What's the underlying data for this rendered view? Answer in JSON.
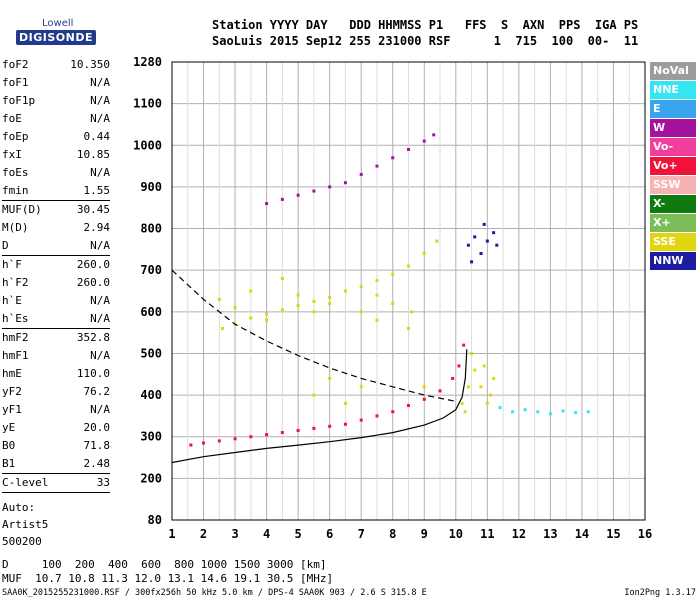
{
  "logo": {
    "sub": "Lowell",
    "main": "DIGISONDE"
  },
  "header": {
    "line1": "Station YYYY DAY   DDD HHMMSS P1   FFS  S  AXN  PPS  IGA PS",
    "line2": "SaoLuis 2015 Sep12 255 231000 RSF      1  715  100  00-  11"
  },
  "params": [
    [
      {
        "l": "foF2",
        "v": "10.350"
      },
      {
        "l": "foF1",
        "v": "N/A"
      },
      {
        "l": "foF1p",
        "v": "N/A"
      },
      {
        "l": "foE",
        "v": "N/A"
      },
      {
        "l": "foEp",
        "v": "0.44"
      },
      {
        "l": "fxI",
        "v": "10.85"
      },
      {
        "l": "foEs",
        "v": "N/A"
      },
      {
        "l": "fmin",
        "v": "1.55"
      }
    ],
    [
      {
        "l": "MUF(D)",
        "v": "30.45"
      },
      {
        "l": "M(D)",
        "v": "2.94"
      },
      {
        "l": "D",
        "v": "N/A"
      }
    ],
    [
      {
        "l": "h`F",
        "v": "260.0"
      },
      {
        "l": "h`F2",
        "v": "260.0"
      },
      {
        "l": "h`E",
        "v": "N/A"
      },
      {
        "l": "h`Es",
        "v": "N/A"
      }
    ],
    [
      {
        "l": "hmF2",
        "v": "352.8"
      },
      {
        "l": "hmF1",
        "v": "N/A"
      },
      {
        "l": "hmE",
        "v": "110.0"
      },
      {
        "l": "yF2",
        "v": "76.2"
      },
      {
        "l": "yF1",
        "v": "N/A"
      },
      {
        "l": "yE",
        "v": "20.0"
      },
      {
        "l": "B0",
        "v": "71.8"
      },
      {
        "l": "B1",
        "v": "2.48"
      }
    ],
    [
      {
        "l": "C-level",
        "v": "33"
      }
    ]
  ],
  "auto": {
    "line1": "Auto:",
    "line2": "Artist5",
    "line3": "500200"
  },
  "legend": [
    {
      "label": "NoVal",
      "color": "#9c9c9c"
    },
    {
      "label": "NNE",
      "color": "#33e6f2"
    },
    {
      "label": "E",
      "color": "#3aa3ee"
    },
    {
      "label": "W",
      "color": "#a3139e"
    },
    {
      "label": "Vo-",
      "color": "#f03e9c"
    },
    {
      "label": "Vo+",
      "color": "#f01238"
    },
    {
      "label": "SSW",
      "color": "#f6b3b3"
    },
    {
      "label": "X-",
      "color": "#0f7a0f"
    },
    {
      "label": "X+",
      "color": "#7cbd5a"
    },
    {
      "label": "SSE",
      "color": "#e1d411"
    },
    {
      "label": "NNW",
      "color": "#1a1aa3"
    }
  ],
  "bottom": {
    "line1": "D     100  200  400  600  800 1000 1500 3000 [km]",
    "line2": "MUF  10.7 10.8 11.3 12.0 13.1 14.6 19.1 30.5 [MHz]"
  },
  "footer": {
    "left": "SAA0K_2015255231000.RSF / 300fx256h 50 kHz 5.0 km / DPS-4 SAA0K 903 / 2.6 S 315.8 E",
    "right": "Ion2Png 1.3.17"
  },
  "chart_data": {
    "type": "scatter",
    "x_ticks": [
      1,
      2,
      3,
      4,
      5,
      6,
      7,
      8,
      9,
      10,
      11,
      12,
      13,
      14,
      15,
      16
    ],
    "y_ticks": [
      80,
      200,
      300,
      400,
      500,
      600,
      700,
      800,
      900,
      1000,
      1100,
      1280
    ],
    "xlim": [
      1,
      16
    ],
    "y_scale": "non-uniform (ionogram virtual height)",
    "grid": true,
    "series": [
      {
        "color": "#f01238",
        "points": [
          [
            1.6,
            280
          ],
          [
            2.0,
            285
          ],
          [
            2.5,
            290
          ],
          [
            3.0,
            295
          ],
          [
            3.5,
            300
          ],
          [
            4.0,
            305
          ],
          [
            4.5,
            310
          ],
          [
            5.0,
            315
          ],
          [
            5.5,
            320
          ],
          [
            6.0,
            325
          ],
          [
            6.5,
            330
          ],
          [
            7.0,
            340
          ],
          [
            7.5,
            350
          ],
          [
            8.0,
            360
          ],
          [
            8.5,
            375
          ],
          [
            9.0,
            390
          ],
          [
            9.5,
            410
          ],
          [
            9.9,
            440
          ],
          [
            10.1,
            470
          ],
          [
            10.25,
            520
          ]
        ]
      },
      {
        "color": "#e1d411",
        "points": [
          [
            2.6,
            560
          ],
          [
            3.0,
            570
          ],
          [
            3.5,
            585
          ],
          [
            4.0,
            595
          ],
          [
            4.5,
            605
          ],
          [
            5.0,
            615
          ],
          [
            5.5,
            625
          ],
          [
            6.0,
            635
          ],
          [
            6.5,
            650
          ],
          [
            7.0,
            660
          ],
          [
            7.5,
            675
          ],
          [
            8.0,
            690
          ],
          [
            8.5,
            710
          ],
          [
            9.0,
            740
          ],
          [
            9.4,
            770
          ]
        ]
      },
      {
        "color": "#a3139e",
        "points": [
          [
            4.0,
            860
          ],
          [
            4.5,
            870
          ],
          [
            5.0,
            880
          ],
          [
            5.5,
            890
          ],
          [
            6.0,
            900
          ],
          [
            6.5,
            910
          ],
          [
            7.0,
            930
          ],
          [
            7.5,
            950
          ],
          [
            8.0,
            970
          ],
          [
            8.5,
            990
          ],
          [
            9.0,
            1010
          ],
          [
            9.3,
            1025
          ]
        ]
      },
      {
        "color": "#e1d411",
        "points": [
          [
            10.2,
            380
          ],
          [
            10.4,
            420
          ],
          [
            10.6,
            460
          ],
          [
            10.8,
            420
          ],
          [
            11.0,
            380
          ],
          [
            11.2,
            440
          ],
          [
            10.5,
            500
          ],
          [
            10.9,
            470
          ],
          [
            10.3,
            360
          ],
          [
            11.1,
            400
          ]
        ]
      },
      {
        "color": "#1a1aa3",
        "points": [
          [
            10.4,
            760
          ],
          [
            10.6,
            780
          ],
          [
            10.8,
            740
          ],
          [
            11.0,
            770
          ],
          [
            11.2,
            790
          ],
          [
            10.5,
            720
          ],
          [
            10.9,
            810
          ],
          [
            11.3,
            760
          ]
        ]
      },
      {
        "color": "#33e6f2",
        "points": [
          [
            11.4,
            370
          ],
          [
            11.8,
            360
          ],
          [
            12.2,
            365
          ],
          [
            12.6,
            360
          ],
          [
            13.0,
            355
          ],
          [
            13.4,
            362
          ],
          [
            13.8,
            358
          ],
          [
            14.2,
            360
          ]
        ]
      },
      {
        "color": "#e1d411",
        "points": [
          [
            2.5,
            630
          ],
          [
            3.0,
            610
          ],
          [
            3.5,
            650
          ],
          [
            4.0,
            580
          ],
          [
            4.5,
            680
          ],
          [
            5.0,
            640
          ],
          [
            5.5,
            600
          ],
          [
            6.0,
            620
          ],
          [
            7.0,
            600
          ],
          [
            7.5,
            640
          ],
          [
            8.0,
            620
          ],
          [
            8.6,
            600
          ],
          [
            6.5,
            380
          ],
          [
            7.0,
            420
          ],
          [
            6.0,
            440
          ],
          [
            5.5,
            400
          ],
          [
            9.0,
            420
          ],
          [
            8.5,
            560
          ],
          [
            7.5,
            580
          ]
        ]
      }
    ],
    "curves": [
      {
        "style": "solid",
        "points": [
          [
            1.0,
            238
          ],
          [
            2.0,
            252
          ],
          [
            3.0,
            262
          ],
          [
            4.0,
            272
          ],
          [
            5.0,
            280
          ],
          [
            6.0,
            288
          ],
          [
            7.0,
            298
          ],
          [
            8.0,
            310
          ],
          [
            9.0,
            328
          ],
          [
            9.6,
            345
          ],
          [
            10.0,
            365
          ],
          [
            10.2,
            395
          ],
          [
            10.3,
            440
          ],
          [
            10.35,
            510
          ]
        ]
      },
      {
        "style": "dashed",
        "points": [
          [
            1.0,
            700
          ],
          [
            2.0,
            630
          ],
          [
            3.0,
            570
          ],
          [
            4.0,
            530
          ],
          [
            5.0,
            495
          ],
          [
            6.0,
            465
          ],
          [
            7.0,
            440
          ],
          [
            8.0,
            420
          ],
          [
            9.0,
            400
          ],
          [
            10.0,
            385
          ]
        ]
      }
    ]
  }
}
